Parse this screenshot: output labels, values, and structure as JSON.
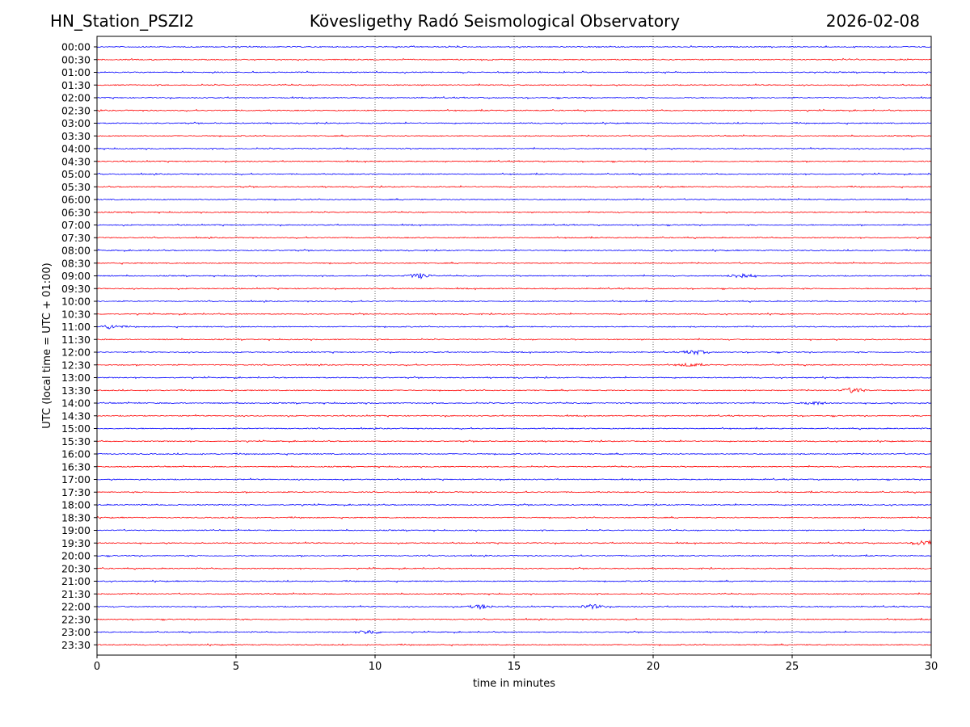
{
  "header": {
    "station": "HN_Station_PSZI2",
    "observatory": "Kövesligethy Radó Seismological Observatory",
    "date": "2026-02-08"
  },
  "chart_data": {
    "type": "line",
    "title": "Kövesligethy Radó Seismological Observatory",
    "xlabel": "time in minutes",
    "ylabel": "UTC (local time = UTC + 01:00)",
    "xlim": [
      0,
      30
    ],
    "xticks": [
      0,
      5,
      10,
      15,
      20,
      25,
      30
    ],
    "grid": "vertical dotted at x ticks",
    "row_labels": [
      "00:00",
      "00:30",
      "01:00",
      "01:30",
      "02:00",
      "02:30",
      "03:00",
      "03:30",
      "04:00",
      "04:30",
      "05:00",
      "05:30",
      "06:00",
      "06:30",
      "07:00",
      "07:30",
      "08:00",
      "08:30",
      "09:00",
      "09:30",
      "10:00",
      "10:30",
      "11:00",
      "11:30",
      "12:00",
      "12:30",
      "13:00",
      "13:30",
      "14:00",
      "14:30",
      "15:00",
      "15:30",
      "16:00",
      "16:30",
      "17:00",
      "17:30",
      "18:00",
      "18:30",
      "19:00",
      "19:30",
      "20:00",
      "20:30",
      "21:00",
      "21:30",
      "22:00",
      "22:30",
      "23:00",
      "23:30"
    ],
    "colors": [
      "#0000ff",
      "#ff0000"
    ],
    "events": [
      {
        "row": "09:00",
        "x": 11.6,
        "amp": 3
      },
      {
        "row": "09:00",
        "x": 23.2,
        "amp": 3
      },
      {
        "row": "11:00",
        "x": 0.5,
        "amp": 2.5
      },
      {
        "row": "12:00",
        "x": 21.5,
        "amp": 2.5
      },
      {
        "row": "12:30",
        "x": 21.3,
        "amp": 2
      },
      {
        "row": "13:30",
        "x": 27.2,
        "amp": 3
      },
      {
        "row": "14:00",
        "x": 25.8,
        "amp": 2
      },
      {
        "row": "19:30",
        "x": 29.8,
        "amp": 3.5
      },
      {
        "row": "22:00",
        "x": 13.8,
        "amp": 2.5
      },
      {
        "row": "22:00",
        "x": 17.8,
        "amp": 2.5
      },
      {
        "row": "23:00",
        "x": 9.8,
        "amp": 2.5
      }
    ]
  }
}
